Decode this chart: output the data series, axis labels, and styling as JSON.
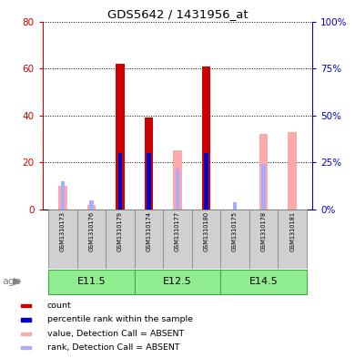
{
  "title": "GDS5642 / 1431956_at",
  "samples": [
    "GSM1310173",
    "GSM1310176",
    "GSM1310179",
    "GSM1310174",
    "GSM1310177",
    "GSM1310180",
    "GSM1310175",
    "GSM1310178",
    "GSM1310181"
  ],
  "age_groups": [
    {
      "label": "E11.5",
      "start": 0,
      "end": 3
    },
    {
      "label": "E12.5",
      "start": 3,
      "end": 6
    },
    {
      "label": "E14.5",
      "start": 6,
      "end": 9
    }
  ],
  "count_values": [
    0,
    0,
    62,
    39,
    0,
    61,
    0,
    0,
    0
  ],
  "rank_values": [
    0,
    0,
    30,
    30,
    0,
    30,
    0,
    0,
    0
  ],
  "absent_value_values": [
    10,
    2,
    0,
    0,
    25,
    0,
    0,
    32,
    33
  ],
  "absent_rank_values": [
    15,
    5,
    0,
    0,
    22,
    0,
    4,
    24,
    0
  ],
  "ylim_left": [
    0,
    80
  ],
  "ylim_right": [
    0,
    100
  ],
  "yticks_left": [
    0,
    20,
    40,
    60,
    80
  ],
  "yticks_right": [
    0,
    25,
    50,
    75,
    100
  ],
  "ytick_labels_left": [
    "0",
    "20",
    "40",
    "60",
    "80"
  ],
  "ytick_labels_right": [
    "0%",
    "25%",
    "50%",
    "75%",
    "100%"
  ],
  "color_count": "#cc0000",
  "color_rank": "#0000cc",
  "color_absent_value": "#ffaaaa",
  "color_absent_rank": "#aaaaff",
  "color_left_axis": "#cc0000",
  "color_right_axis": "#0000cc",
  "bg_sample_label": "#d0d0d0",
  "bg_age_group": "#90ee90",
  "age_group_edge": "#44aa44",
  "age_label": "age",
  "bar_width": 0.55,
  "rank_bar_width": 0.25,
  "legend_items": [
    {
      "label": "count",
      "color": "#cc0000"
    },
    {
      "label": "percentile rank within the sample",
      "color": "#0000cc"
    },
    {
      "label": "value, Detection Call = ABSENT",
      "color": "#ffaaaa"
    },
    {
      "label": "rank, Detection Call = ABSENT",
      "color": "#aaaaff"
    }
  ]
}
